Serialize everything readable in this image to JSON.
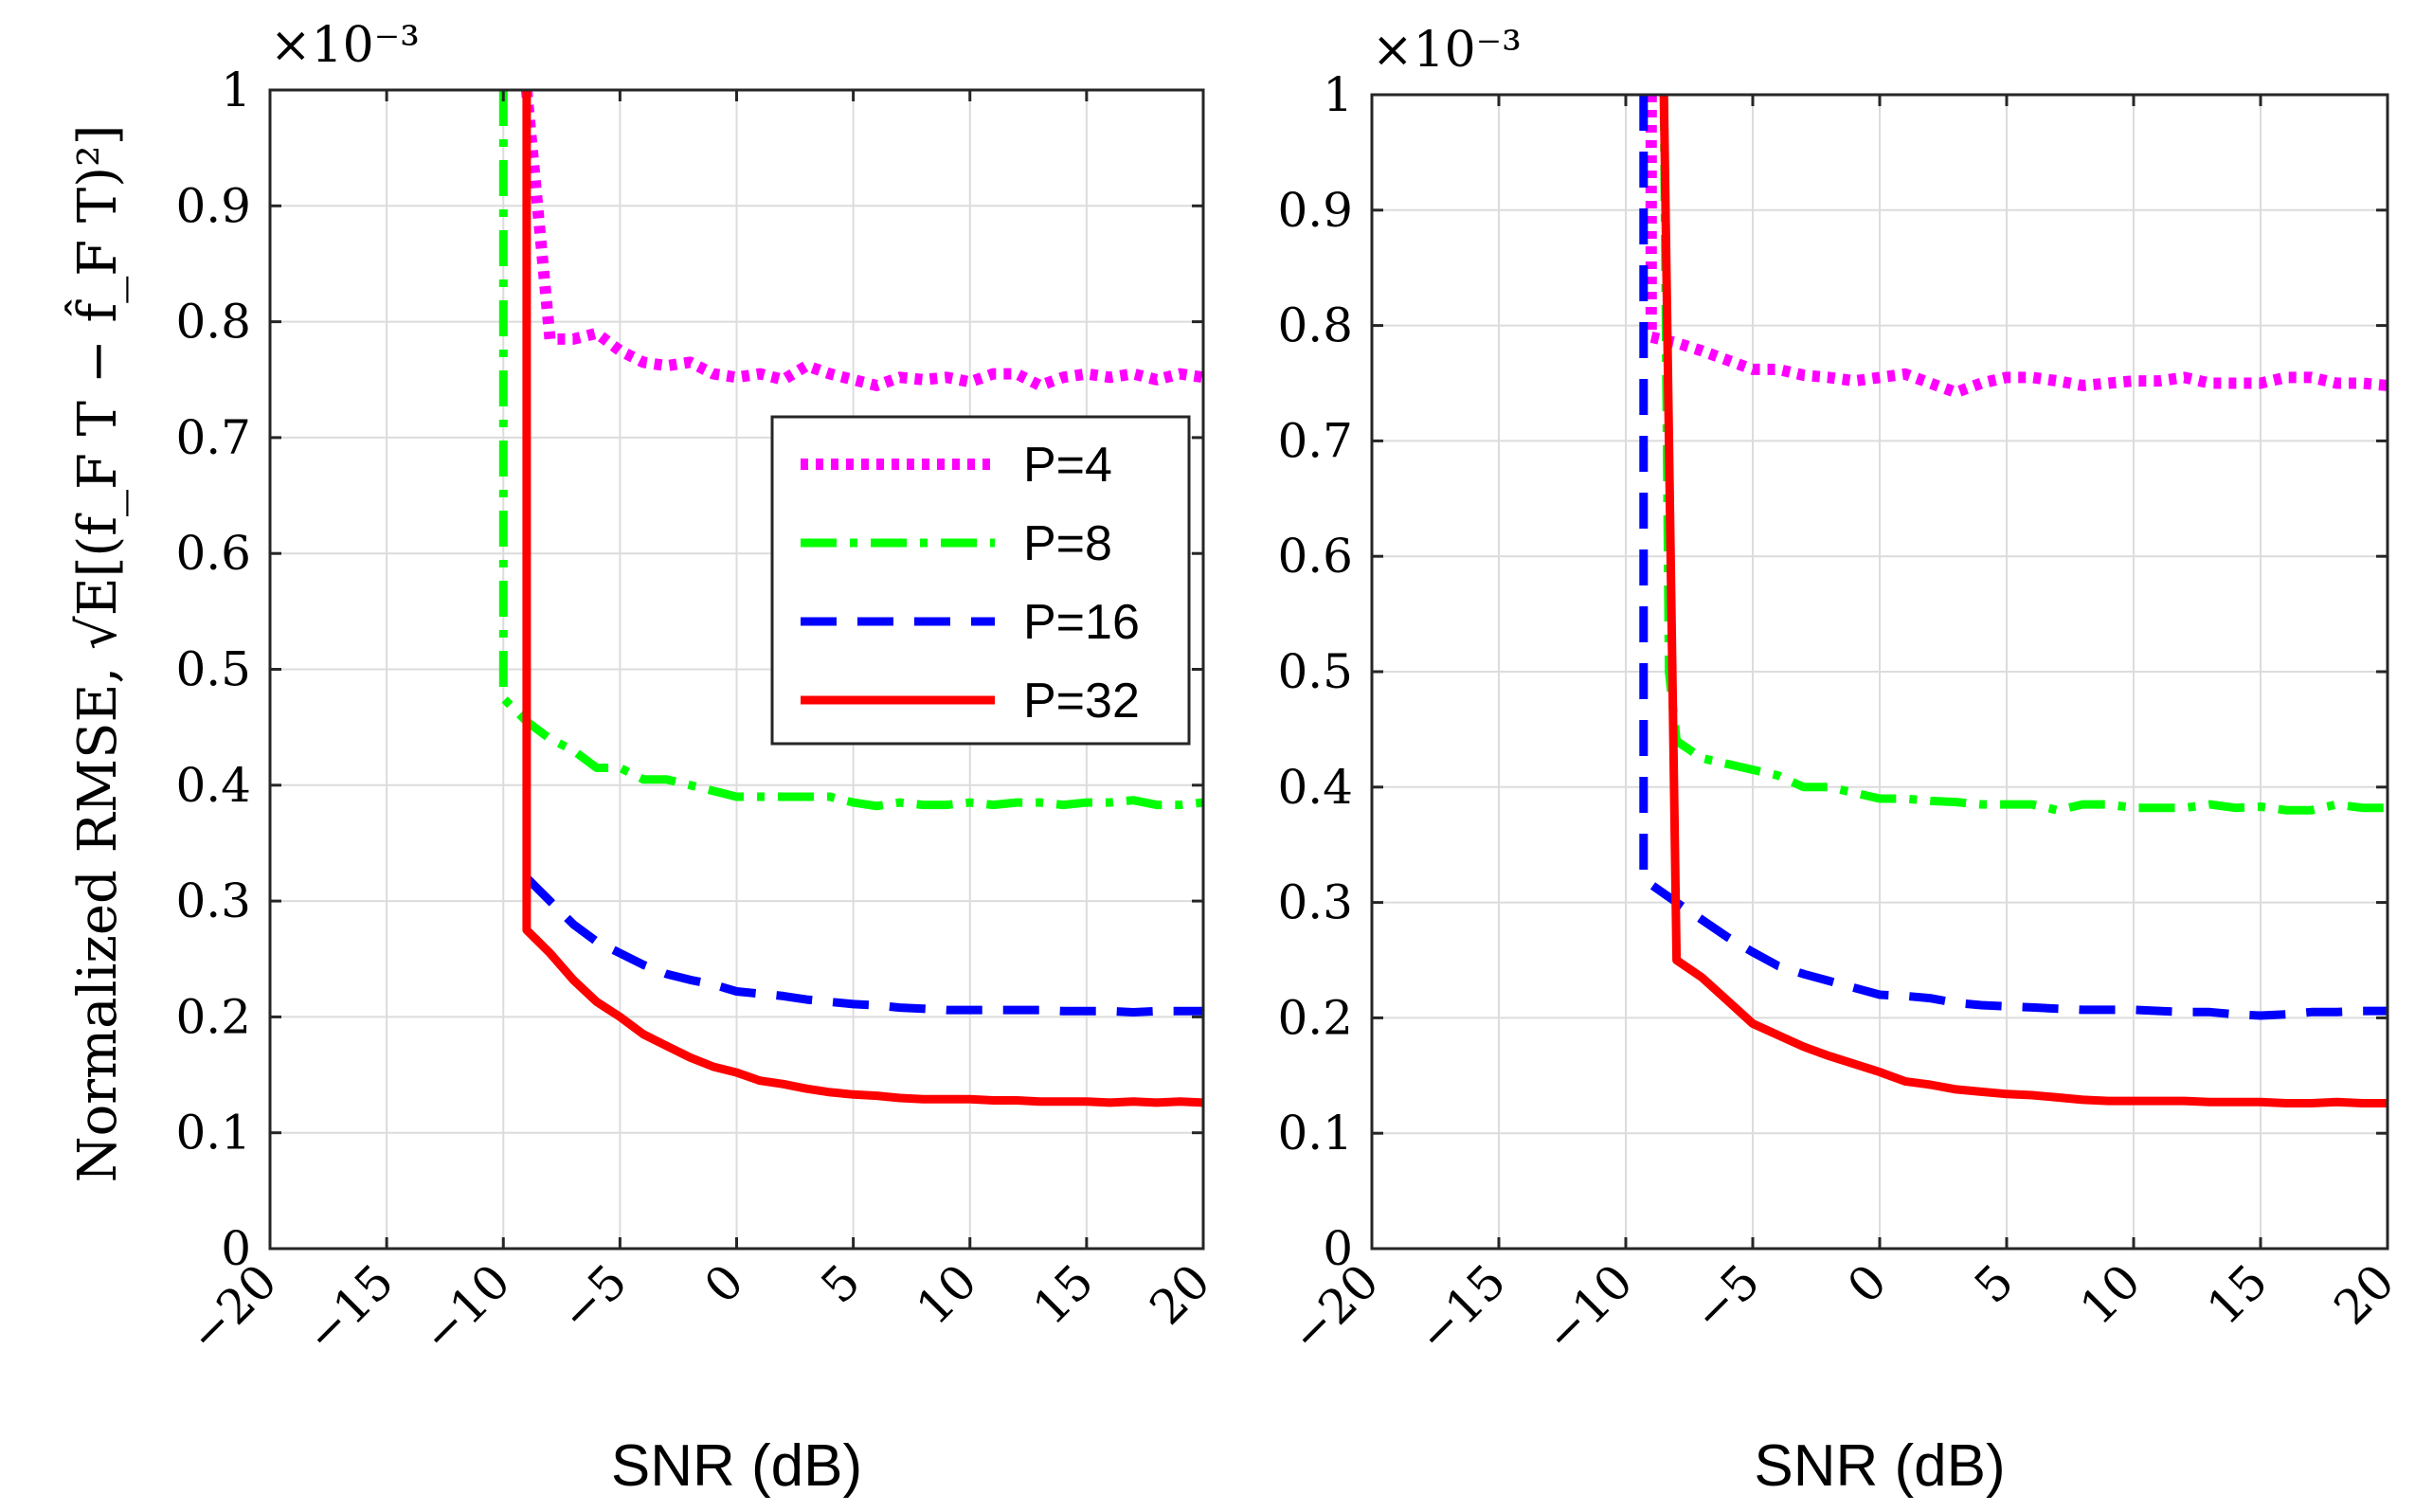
{
  "figure": {
    "ylabel": "Normalized RMSE, √E[(f_F T − f̂_F T)²]",
    "exponent_label": "×10⁻³",
    "colors": {
      "P=4": "#ff00ff",
      "P=8": "#00ff00",
      "P=16": "#0000ff",
      "P=32": "#ff0000"
    }
  },
  "chart_data": [
    {
      "type": "line",
      "title": "",
      "xlabel": "SNR (dB)",
      "ylabel": "Normalized RMSE, √E[(f_F T − f̂_F T)²]",
      "xlim": [
        -20,
        20
      ],
      "ylim": [
        0,
        1
      ],
      "xticks": [
        "−20",
        "−15",
        "−10",
        "−5",
        "0",
        "5",
        "10",
        "15",
        "20"
      ],
      "yticks": [
        "0",
        "0.1",
        "0.2",
        "0.3",
        "0.4",
        "0.5",
        "0.6",
        "0.7",
        "0.8",
        "0.9",
        "1"
      ],
      "y_multiplier": "×10⁻³",
      "grid": true,
      "legend": {
        "position": "top-right",
        "entries": [
          "P=4",
          "P=8",
          "P=16",
          "P=32"
        ]
      },
      "series": [
        {
          "name": "P=4",
          "style": "dotted",
          "x": [
            -9,
            -8,
            -7,
            -6,
            -5,
            -4,
            -3,
            -2,
            -1,
            0,
            1,
            2,
            3,
            4,
            5,
            6,
            7,
            8,
            9,
            10,
            11,
            12,
            13,
            14,
            15,
            16,
            17,
            18,
            19,
            20
          ],
          "y": [
            1.0,
            0.785,
            0.785,
            0.79,
            0.775,
            0.765,
            0.762,
            0.765,
            0.755,
            0.752,
            0.755,
            0.75,
            0.762,
            0.755,
            0.75,
            0.745,
            0.752,
            0.75,
            0.752,
            0.748,
            0.755,
            0.755,
            0.745,
            0.752,
            0.755,
            0.752,
            0.755,
            0.75,
            0.755,
            0.752
          ]
        },
        {
          "name": "P=8",
          "style": "dashdot",
          "x": [
            -10,
            -10,
            -9,
            -8,
            -7,
            -6,
            -5,
            -4,
            -3,
            -2,
            -1,
            0,
            1,
            2,
            3,
            4,
            5,
            6,
            7,
            8,
            9,
            10,
            11,
            12,
            13,
            14,
            15,
            16,
            17,
            18,
            19,
            20
          ],
          "y": [
            1.0,
            0.475,
            0.455,
            0.44,
            0.43,
            0.415,
            0.415,
            0.405,
            0.405,
            0.4,
            0.395,
            0.39,
            0.39,
            0.39,
            0.39,
            0.39,
            0.385,
            0.382,
            0.385,
            0.383,
            0.383,
            0.385,
            0.383,
            0.385,
            0.385,
            0.383,
            0.385,
            0.385,
            0.387,
            0.383,
            0.383,
            0.385
          ]
        },
        {
          "name": "P=16",
          "style": "dashed",
          "x": [
            -9,
            -8,
            -7,
            -6,
            -5,
            -4,
            -3,
            -2,
            -1,
            0,
            1,
            2,
            3,
            4,
            5,
            6,
            7,
            8,
            9,
            10,
            11,
            12,
            13,
            14,
            15,
            16,
            17,
            18,
            19,
            20
          ],
          "y": [
            0.32,
            0.3,
            0.28,
            0.265,
            0.255,
            0.245,
            0.237,
            0.232,
            0.228,
            0.222,
            0.22,
            0.218,
            0.215,
            0.213,
            0.211,
            0.21,
            0.208,
            0.207,
            0.206,
            0.206,
            0.206,
            0.206,
            0.206,
            0.205,
            0.205,
            0.205,
            0.204,
            0.205,
            0.205,
            0.205
          ]
        },
        {
          "name": "P=32",
          "style": "solid",
          "x": [
            -9,
            -9,
            -8,
            -7,
            -6,
            -5,
            -4,
            -3,
            -2,
            -1,
            0,
            1,
            2,
            3,
            4,
            5,
            6,
            7,
            8,
            9,
            10,
            11,
            12,
            13,
            14,
            15,
            16,
            17,
            18,
            19,
            20
          ],
          "y": [
            1.0,
            0.275,
            0.255,
            0.232,
            0.213,
            0.2,
            0.185,
            0.175,
            0.165,
            0.157,
            0.152,
            0.145,
            0.142,
            0.138,
            0.135,
            0.133,
            0.132,
            0.13,
            0.129,
            0.129,
            0.129,
            0.128,
            0.128,
            0.127,
            0.127,
            0.127,
            0.126,
            0.127,
            0.126,
            0.127,
            0.126
          ]
        }
      ]
    },
    {
      "type": "line",
      "title": "",
      "xlabel": "SNR (dB)",
      "ylabel": "",
      "xlim": [
        -20,
        20
      ],
      "ylim": [
        0,
        1
      ],
      "xticks": [
        "−20",
        "−15",
        "−10",
        "−5",
        "0",
        "5",
        "10",
        "15",
        "20"
      ],
      "yticks": [
        "0",
        "0.1",
        "0.2",
        "0.3",
        "0.4",
        "0.5",
        "0.6",
        "0.7",
        "0.8",
        "0.9",
        "1"
      ],
      "y_multiplier": "×10⁻³",
      "grid": true,
      "legend": null,
      "series": [
        {
          "name": "P=4",
          "style": "dotted",
          "x": [
            -9,
            -9,
            -8,
            -7,
            -6,
            -5,
            -4,
            -3,
            -2,
            -1,
            0,
            1,
            2,
            3,
            4,
            5,
            6,
            7,
            8,
            9,
            10,
            11,
            12,
            13,
            14,
            15,
            16,
            17,
            18,
            19,
            20
          ],
          "y": [
            1.0,
            0.79,
            0.785,
            0.778,
            0.77,
            0.762,
            0.762,
            0.757,
            0.755,
            0.752,
            0.755,
            0.758,
            0.75,
            0.742,
            0.75,
            0.755,
            0.755,
            0.752,
            0.748,
            0.75,
            0.752,
            0.752,
            0.755,
            0.75,
            0.75,
            0.75,
            0.755,
            0.755,
            0.75,
            0.75,
            0.748
          ]
        },
        {
          "name": "P=8",
          "style": "dashdot",
          "x": [
            -8.5,
            -8.3,
            -8,
            -7,
            -6,
            -5,
            -4,
            -3,
            -2,
            -1,
            0,
            1,
            2,
            3,
            4,
            5,
            6,
            7,
            8,
            9,
            10,
            11,
            12,
            13,
            14,
            15,
            16,
            17,
            18,
            19,
            20
          ],
          "y": [
            1.0,
            0.5,
            0.44,
            0.425,
            0.42,
            0.415,
            0.41,
            0.4,
            0.4,
            0.395,
            0.39,
            0.39,
            0.388,
            0.387,
            0.385,
            0.385,
            0.385,
            0.38,
            0.385,
            0.385,
            0.382,
            0.382,
            0.382,
            0.385,
            0.382,
            0.383,
            0.38,
            0.38,
            0.385,
            0.382,
            0.382
          ]
        },
        {
          "name": "P=16",
          "style": "dashed",
          "x": [
            -9.3,
            -9.3,
            -8,
            -7,
            -6,
            -5,
            -4,
            -3,
            -2,
            -1,
            0,
            1,
            2,
            3,
            4,
            5,
            6,
            7,
            8,
            9,
            10,
            11,
            12,
            13,
            14,
            15,
            16,
            17,
            18,
            19,
            20
          ],
          "y": [
            1.0,
            0.32,
            0.3,
            0.285,
            0.27,
            0.257,
            0.245,
            0.238,
            0.232,
            0.226,
            0.22,
            0.219,
            0.217,
            0.213,
            0.211,
            0.21,
            0.209,
            0.208,
            0.207,
            0.207,
            0.207,
            0.206,
            0.205,
            0.205,
            0.203,
            0.202,
            0.203,
            0.205,
            0.205,
            0.206,
            0.206
          ]
        },
        {
          "name": "P=32",
          "style": "solid",
          "x": [
            -8.5,
            -8,
            -7,
            -6,
            -5,
            -4,
            -3,
            -2,
            -1,
            0,
            1,
            2,
            3,
            4,
            5,
            6,
            7,
            8,
            9,
            10,
            11,
            12,
            13,
            14,
            15,
            16,
            17,
            18,
            19,
            20
          ],
          "y": [
            1.0,
            0.25,
            0.235,
            0.215,
            0.195,
            0.185,
            0.175,
            0.167,
            0.16,
            0.153,
            0.145,
            0.142,
            0.138,
            0.136,
            0.134,
            0.133,
            0.131,
            0.129,
            0.128,
            0.128,
            0.128,
            0.128,
            0.127,
            0.127,
            0.127,
            0.126,
            0.126,
            0.127,
            0.126,
            0.126
          ]
        }
      ]
    }
  ]
}
